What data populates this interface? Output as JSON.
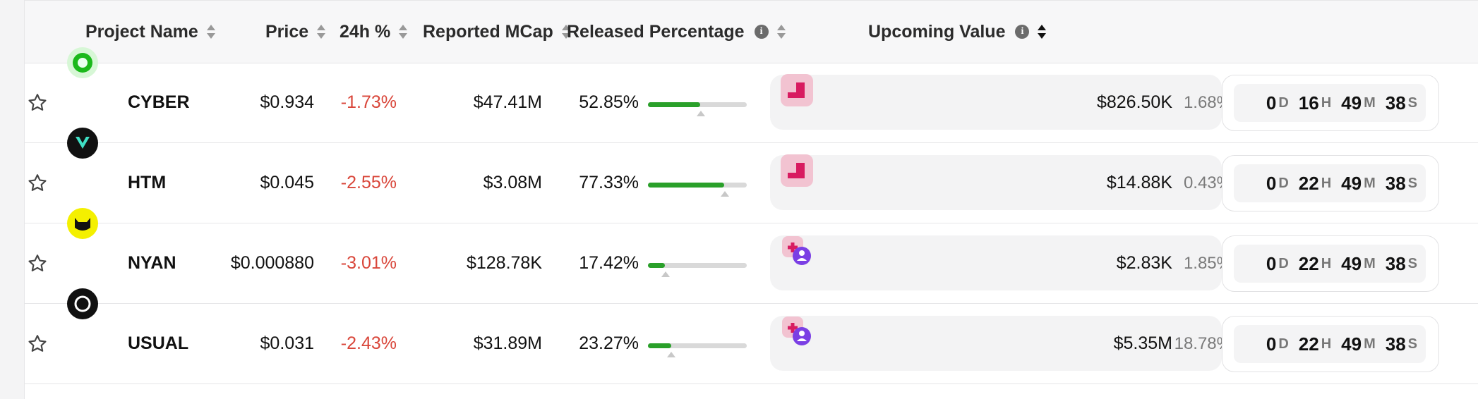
{
  "headers": {
    "project_name": "Project Name",
    "price": "Price",
    "change_24h": "24h %",
    "reported_mcap": "Reported MCap",
    "released_percentage": "Released Percentage",
    "upcoming_value": "Upcoming Value"
  },
  "rows": [
    {
      "symbol": "CYBER",
      "price": "$0.934",
      "change": "-1.73%",
      "mcap": "$47.41M",
      "released": "52.85%",
      "released_value": 0.5285,
      "unlock_marker": 0.535,
      "upcoming": "$826.50K",
      "upcoming_pct": "1.68%",
      "cd_d": "0",
      "cd_h": "16",
      "cd_m": "49",
      "cd_s": "38",
      "logo_bg": "#d7f7d6",
      "logo_fg": "#1bb91b",
      "upcoming_icon": "unlock-cliff-icon"
    },
    {
      "symbol": "HTM",
      "price": "$0.045",
      "change": "-2.55%",
      "mcap": "$3.08M",
      "released": "77.33%",
      "released_value": 0.7733,
      "unlock_marker": 0.775,
      "upcoming": "$14.88K",
      "upcoming_pct": "0.43%",
      "cd_d": "0",
      "cd_h": "22",
      "cd_m": "49",
      "cd_s": "38",
      "logo_bg": "#111111",
      "logo_fg": "#3fe0c5",
      "upcoming_icon": "unlock-cliff-icon"
    },
    {
      "symbol": "NYAN",
      "price": "$0.000880",
      "change": "-3.01%",
      "mcap": "$128.78K",
      "released": "17.42%",
      "released_value": 0.1742,
      "unlock_marker": 0.175,
      "upcoming": "$2.83K",
      "upcoming_pct": "1.85%",
      "cd_d": "0",
      "cd_h": "22",
      "cd_m": "49",
      "cd_s": "38",
      "logo_bg": "#f4f000",
      "logo_fg": "#111111",
      "upcoming_icon": "unlock-team-icon"
    },
    {
      "symbol": "USUAL",
      "price": "$0.031",
      "change": "-2.43%",
      "mcap": "$31.89M",
      "released": "23.27%",
      "released_value": 0.2327,
      "unlock_marker": 0.235,
      "upcoming": "$5.35M",
      "upcoming_pct": "18.78%",
      "cd_d": "0",
      "cd_h": "22",
      "cd_m": "49",
      "cd_s": "38",
      "logo_bg": "#111111",
      "logo_fg": "#ffffff",
      "upcoming_icon": "unlock-team-icon"
    }
  ],
  "countdown_units": {
    "d": "D",
    "h": "H",
    "m": "M",
    "s": "S"
  },
  "colors": {
    "negative": "#d9463a",
    "progress": "#2aa02a",
    "accent_pink": "#d81b60",
    "accent_purple": "#7b3fe4"
  }
}
